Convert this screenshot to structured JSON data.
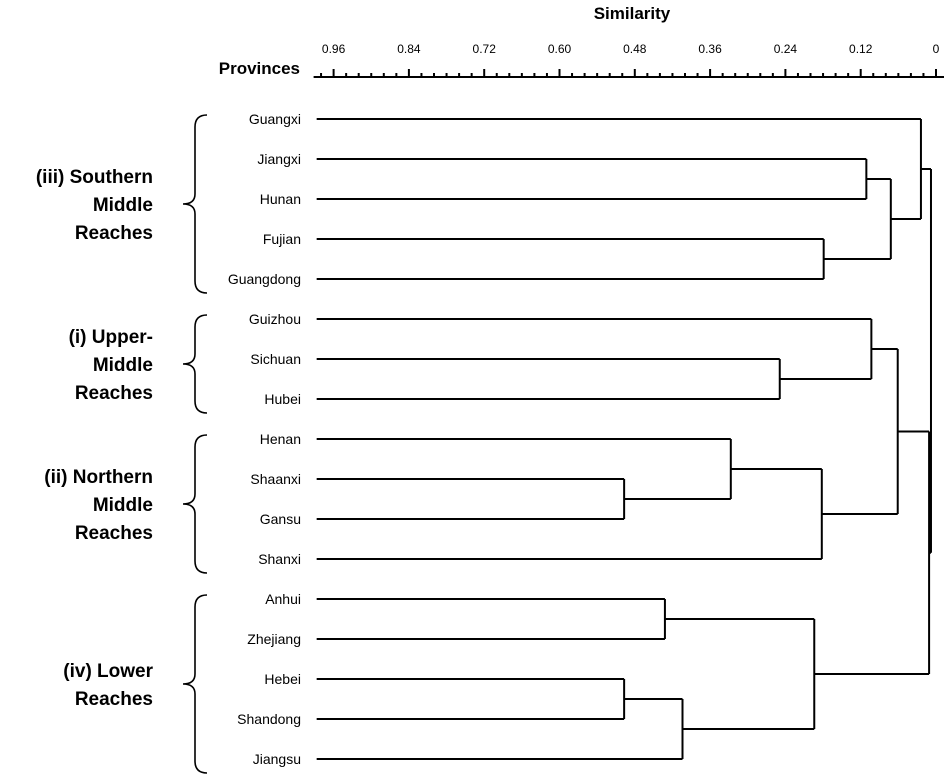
{
  "chart_data": {
    "type": "dendrogram",
    "title": "Similarity",
    "ylabel": "Provinces",
    "axis": {
      "ticks": [
        0.96,
        0.84,
        0.72,
        0.6,
        0.48,
        0.36,
        0.24,
        0.12,
        0
      ],
      "tick_labels": [
        "0.96",
        "0.84",
        "0.72",
        "0.60",
        "0.48",
        "0.36",
        "0.24",
        "0.12",
        "0"
      ],
      "range": [
        1.0,
        0
      ],
      "direction": "decreasing to the right"
    },
    "leaves": [
      "Guangxi",
      "Jiangxi",
      "Hunan",
      "Fujian",
      "Guangdong",
      "Guizhou",
      "Sichuan",
      "Hubei",
      "Henan",
      "Shaanxi",
      "Gansu",
      "Shanxi",
      "Anhui",
      "Zhejiang",
      "Hebei",
      "Shandong",
      "Jiangsu"
    ],
    "leaf_similarity": 0.987,
    "merges": [
      {
        "id": "m1",
        "children": [
          "Jiangxi",
          "Hunan"
        ],
        "similarity": 0.111
      },
      {
        "id": "m2",
        "children": [
          "Fujian",
          "Guangdong"
        ],
        "similarity": 0.179
      },
      {
        "id": "m3",
        "children": [
          "m1",
          "m2"
        ],
        "similarity": 0.072
      },
      {
        "id": "m4",
        "children": [
          "Guangxi",
          "m3"
        ],
        "similarity": 0.024
      },
      {
        "id": "m5",
        "children": [
          "Sichuan",
          "Hubei"
        ],
        "similarity": 0.249
      },
      {
        "id": "m6",
        "children": [
          "Guizhou",
          "m5"
        ],
        "similarity": 0.103
      },
      {
        "id": "m7",
        "children": [
          "Shaanxi",
          "Gansu"
        ],
        "similarity": 0.497
      },
      {
        "id": "m8",
        "children": [
          "Henan",
          "m7"
        ],
        "similarity": 0.327
      },
      {
        "id": "m9",
        "children": [
          "m8",
          "Shanxi"
        ],
        "similarity": 0.182
      },
      {
        "id": "m10",
        "children": [
          "m6",
          "m9"
        ],
        "similarity": 0.061
      },
      {
        "id": "m11",
        "children": [
          "Anhui",
          "Zhejiang"
        ],
        "similarity": 0.432
      },
      {
        "id": "m12",
        "children": [
          "Hebei",
          "Shandong"
        ],
        "similarity": 0.497
      },
      {
        "id": "m13",
        "children": [
          "m12",
          "Jiangsu"
        ],
        "similarity": 0.404
      },
      {
        "id": "m14",
        "children": [
          "m11",
          "m13"
        ],
        "similarity": 0.194
      },
      {
        "id": "m15",
        "children": [
          "m10",
          "m14"
        ],
        "similarity": 0.011
      },
      {
        "id": "m16",
        "children": [
          "m4",
          "m15"
        ],
        "similarity": 0.008
      }
    ],
    "groups": [
      {
        "lines": [
          "(iii) Southern",
          "Middle",
          "Reaches"
        ],
        "members": [
          "Guangxi",
          "Jiangxi",
          "Hunan",
          "Fujian",
          "Guangdong"
        ]
      },
      {
        "lines": [
          "(i) Upper-",
          "Middle",
          "Reaches"
        ],
        "members": [
          "Guizhou",
          "Sichuan",
          "Hubei"
        ]
      },
      {
        "lines": [
          "(ii) Northern",
          "Middle",
          "Reaches"
        ],
        "members": [
          "Henan",
          "Shaanxi",
          "Gansu",
          "Shanxi"
        ]
      },
      {
        "lines": [
          "(iv) Lower",
          "Reaches"
        ],
        "members": [
          "Anhui",
          "Zhejiang",
          "Hebei",
          "Shandong",
          "Jiangsu"
        ]
      }
    ]
  }
}
